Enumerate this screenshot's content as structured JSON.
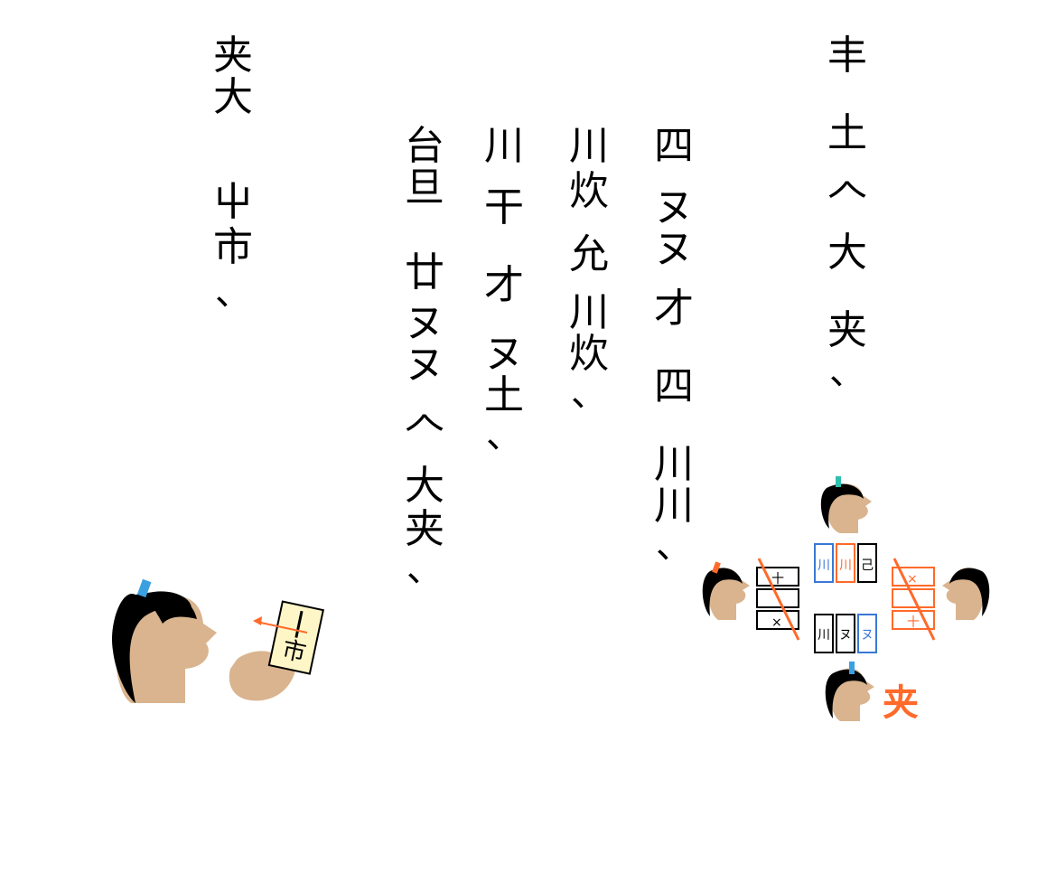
{
  "columns": [
    {
      "glyphs": [
        "丰",
        "土",
        "𠆢",
        "大",
        "夹",
        "、"
      ]
    },
    {
      "glyphs": [
        "四",
        "ヌ",
        "ヌ",
        "才",
        "四",
        "川",
        "川",
        "、"
      ]
    },
    {
      "glyphs": [
        "川",
        "炊",
        "允",
        "川",
        "炊",
        "、"
      ]
    },
    {
      "glyphs": [
        "川",
        "干",
        "才",
        "ヌ",
        "土",
        "、"
      ]
    },
    {
      "glyphs": [
        "台",
        "旦",
        "廿",
        "ヌ",
        "ヌ",
        "𠆢",
        "大",
        "夹",
        "、"
      ]
    },
    {
      "glyphs": [
        "夹",
        "大",
        "屮",
        "市",
        "、"
      ]
    }
  ],
  "hand_card_symbol": "市",
  "top_row_cards": [
    "川",
    "川",
    "己"
  ],
  "bottom_row_cards": [
    "川",
    "ヌ",
    "ヌ"
  ],
  "left_cards": [
    "十",
    "",
    "×"
  ],
  "right_cards": [
    "×",
    "",
    "十"
  ],
  "result_glyph": "夹",
  "colors": {
    "orange": "#ff6a2a",
    "blue": "#3a78d6",
    "skin": "#d9b48f",
    "hair": "#000000"
  }
}
